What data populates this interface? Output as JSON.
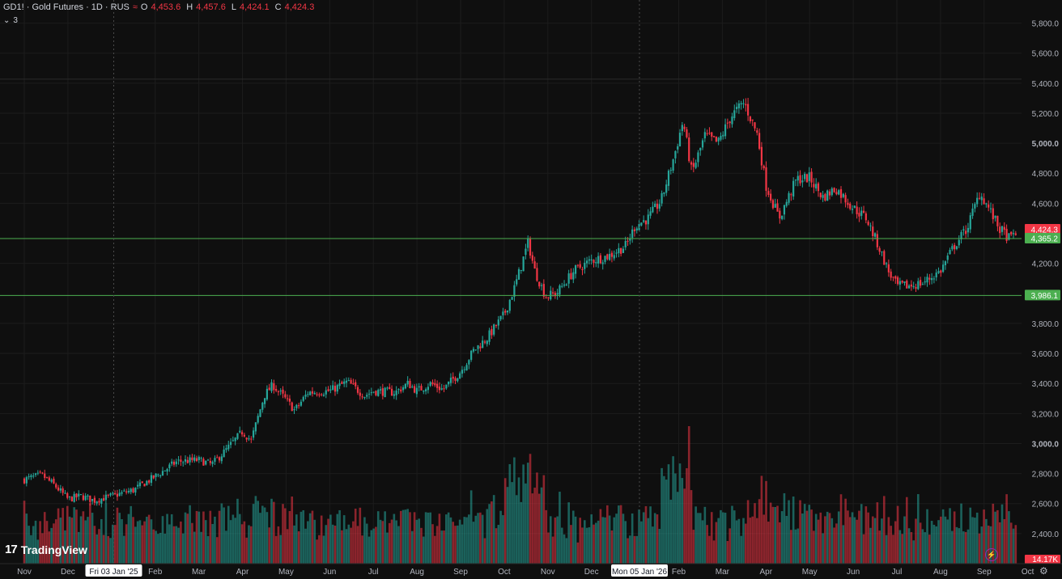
{
  "legend": {
    "symbol": "GD1! · Gold Futures · 1D · RUS",
    "wave_glyph": "≈",
    "ohlc": [
      {
        "k": "O",
        "v": "4,453.6"
      },
      {
        "k": "H",
        "v": "4,457.6"
      },
      {
        "k": "L",
        "v": "4,424.1"
      },
      {
        "k": "C",
        "v": "4,424.3"
      }
    ],
    "collapse_count": "3"
  },
  "logo": {
    "text": "TradingView",
    "mark": "17"
  },
  "colors": {
    "up": "#26a69a",
    "down": "#f23645",
    "bg": "#0f0f0f",
    "hline": "#4caf50",
    "grid": "#1c1c1c"
  },
  "chart_data": {
    "type": "candlestick",
    "y_range": [
      2200,
      5900
    ],
    "y_ticks": [
      {
        "v": 5800,
        "label": "5,800.0"
      },
      {
        "v": 5600,
        "label": "5,600.0"
      },
      {
        "v": 5400,
        "label": "5,400.0"
      },
      {
        "v": 5200,
        "label": "5,200.0"
      },
      {
        "v": 5000,
        "label": "5,000.0",
        "bold": true
      },
      {
        "v": 4800,
        "label": "4,800.0"
      },
      {
        "v": 4600,
        "label": "4,600.0"
      },
      {
        "v": 4200,
        "label": "4,200.0"
      },
      {
        "v": 3800,
        "label": "3,800.0"
      },
      {
        "v": 3600,
        "label": "3,600.0"
      },
      {
        "v": 3400,
        "label": "3,400.0"
      },
      {
        "v": 3200,
        "label": "3,200.0"
      },
      {
        "v": 3000,
        "label": "3,000.0",
        "bold": true
      },
      {
        "v": 2800,
        "label": "2,800.0"
      },
      {
        "v": 2600,
        "label": "2,600.0"
      },
      {
        "v": 2400,
        "label": "2,400.0"
      }
    ],
    "x_labels": [
      {
        "label": "Nov",
        "t": 0.0
      },
      {
        "label": "Dec",
        "t": 1.0
      },
      {
        "label": "Feb",
        "t": 3.0
      },
      {
        "label": "Mar",
        "t": 4.0
      },
      {
        "label": "Apr",
        "t": 5.0
      },
      {
        "label": "May",
        "t": 6.0
      },
      {
        "label": "Jun",
        "t": 7.0
      },
      {
        "label": "Jul",
        "t": 8.0
      },
      {
        "label": "Aug",
        "t": 9.0
      },
      {
        "label": "Sep",
        "t": 10.0
      },
      {
        "label": "Oct",
        "t": 11.0
      },
      {
        "label": "Nov",
        "t": 12.0
      },
      {
        "label": "Dec",
        "t": 13.0
      },
      {
        "label": "Feb",
        "t": 15.0
      },
      {
        "label": "Mar",
        "t": 16.0
      },
      {
        "label": "Apr",
        "t": 17.0
      },
      {
        "label": "May",
        "t": 18.0
      },
      {
        "label": "Jun",
        "t": 19.0
      },
      {
        "label": "Jul",
        "t": 20.0
      },
      {
        "label": "Aug",
        "t": 21.0
      },
      {
        "label": "Sep",
        "t": 22.0
      },
      {
        "label": "Oct",
        "t": 23.0
      }
    ],
    "x_markers": [
      {
        "label": "Fri 03 Jan '25",
        "t": 2.05
      },
      {
        "label": "Mon 05 Jan '26",
        "t": 14.1
      }
    ],
    "horizontal_lines": [
      4365.2,
      3986.1
    ],
    "price_tags": [
      {
        "v": 4424.3,
        "label": "4,424.3",
        "color": "#f23645"
      },
      {
        "v": 4365.2,
        "label": "4,365.2",
        "color": "#4caf50"
      },
      {
        "v": 3986.1,
        "label": "3,986.1",
        "color": "#4caf50"
      }
    ],
    "volume_tag": {
      "label": "14.17K",
      "color": "#f23645"
    },
    "close_path": [
      {
        "t": 0.0,
        "c": 2760
      },
      {
        "t": 0.4,
        "c": 2790
      },
      {
        "t": 0.7,
        "c": 2720
      },
      {
        "t": 1.0,
        "c": 2630
      },
      {
        "t": 1.3,
        "c": 2650
      },
      {
        "t": 1.6,
        "c": 2620
      },
      {
        "t": 2.0,
        "c": 2650
      },
      {
        "t": 2.5,
        "c": 2690
      },
      {
        "t": 3.0,
        "c": 2780
      },
      {
        "t": 3.5,
        "c": 2880
      },
      {
        "t": 4.0,
        "c": 2890
      },
      {
        "t": 4.3,
        "c": 2860
      },
      {
        "t": 4.6,
        "c": 2950
      },
      {
        "t": 5.0,
        "c": 3080
      },
      {
        "t": 5.2,
        "c": 3020
      },
      {
        "t": 5.5,
        "c": 3320
      },
      {
        "t": 5.7,
        "c": 3390
      },
      {
        "t": 6.0,
        "c": 3290
      },
      {
        "t": 6.2,
        "c": 3220
      },
      {
        "t": 6.5,
        "c": 3340
      },
      {
        "t": 7.0,
        "c": 3350
      },
      {
        "t": 7.4,
        "c": 3410
      },
      {
        "t": 7.8,
        "c": 3320
      },
      {
        "t": 8.0,
        "c": 3350
      },
      {
        "t": 8.5,
        "c": 3340
      },
      {
        "t": 8.8,
        "c": 3400
      },
      {
        "t": 9.0,
        "c": 3350
      },
      {
        "t": 9.3,
        "c": 3400
      },
      {
        "t": 9.6,
        "c": 3360
      },
      {
        "t": 10.0,
        "c": 3480
      },
      {
        "t": 10.3,
        "c": 3620
      },
      {
        "t": 10.6,
        "c": 3700
      },
      {
        "t": 11.0,
        "c": 3860
      },
      {
        "t": 11.25,
        "c": 4050
      },
      {
        "t": 11.55,
        "c": 4340
      },
      {
        "t": 11.7,
        "c": 4150
      },
      {
        "t": 11.95,
        "c": 3980
      },
      {
        "t": 12.2,
        "c": 4000
      },
      {
        "t": 12.6,
        "c": 4150
      },
      {
        "t": 13.0,
        "c": 4220
      },
      {
        "t": 13.4,
        "c": 4250
      },
      {
        "t": 13.8,
        "c": 4320
      },
      {
        "t": 14.0,
        "c": 4450
      },
      {
        "t": 14.3,
        "c": 4500
      },
      {
        "t": 14.6,
        "c": 4620
      },
      {
        "t": 14.9,
        "c": 4920
      },
      {
        "t": 15.1,
        "c": 5150
      },
      {
        "t": 15.3,
        "c": 4800
      },
      {
        "t": 15.6,
        "c": 5050
      },
      {
        "t": 15.9,
        "c": 5000
      },
      {
        "t": 16.2,
        "c": 5180
      },
      {
        "t": 16.5,
        "c": 5270
      },
      {
        "t": 16.8,
        "c": 5060
      },
      {
        "t": 17.0,
        "c": 4720
      },
      {
        "t": 17.3,
        "c": 4500
      },
      {
        "t": 17.7,
        "c": 4760
      },
      {
        "t": 18.0,
        "c": 4770
      },
      {
        "t": 18.3,
        "c": 4640
      },
      {
        "t": 18.6,
        "c": 4700
      },
      {
        "t": 19.0,
        "c": 4570
      },
      {
        "t": 19.3,
        "c": 4500
      },
      {
        "t": 19.6,
        "c": 4300
      },
      {
        "t": 19.8,
        "c": 4150
      },
      {
        "t": 20.0,
        "c": 4050
      },
      {
        "t": 20.3,
        "c": 4050
      },
      {
        "t": 20.6,
        "c": 4070
      },
      {
        "t": 21.0,
        "c": 4150
      },
      {
        "t": 21.3,
        "c": 4310
      },
      {
        "t": 21.6,
        "c": 4430
      },
      {
        "t": 21.9,
        "c": 4670
      },
      {
        "t": 22.1,
        "c": 4570
      },
      {
        "t": 22.35,
        "c": 4430
      },
      {
        "t": 22.6,
        "c": 4360
      },
      {
        "t": 22.75,
        "c": 4424
      }
    ]
  }
}
